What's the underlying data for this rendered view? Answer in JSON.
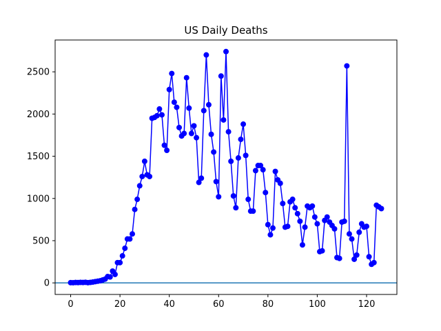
{
  "chart_data": {
    "type": "line",
    "title": "US Daily Deaths",
    "xlabel": "",
    "ylabel": "",
    "xlim": [
      -6.3,
      132.3
    ],
    "ylim": [
      -137,
      2877
    ],
    "xticks": [
      0,
      20,
      40,
      60,
      80,
      100,
      120
    ],
    "yticks": [
      0,
      500,
      1000,
      1500,
      2000,
      2500
    ],
    "grid": false,
    "legend": "none",
    "reference_line": {
      "y": 0,
      "color": "#1f77b4"
    },
    "series": [
      {
        "color": "#0000ff",
        "marker": "circle",
        "x": [
          0,
          1,
          2,
          3,
          4,
          5,
          6,
          7,
          8,
          9,
          10,
          11,
          12,
          13,
          14,
          15,
          16,
          17,
          18,
          19,
          20,
          21,
          22,
          23,
          24,
          25,
          26,
          27,
          28,
          29,
          30,
          31,
          32,
          33,
          34,
          35,
          36,
          37,
          38,
          39,
          40,
          41,
          42,
          43,
          44,
          45,
          46,
          47,
          48,
          49,
          50,
          51,
          52,
          53,
          54,
          55,
          56,
          57,
          58,
          59,
          60,
          61,
          62,
          63,
          64,
          65,
          66,
          67,
          68,
          69,
          70,
          71,
          72,
          73,
          74,
          75,
          76,
          77,
          78,
          79,
          80,
          81,
          82,
          83,
          84,
          85,
          86,
          87,
          88,
          89,
          90,
          91,
          92,
          93,
          94,
          95,
          96,
          97,
          98,
          99,
          100,
          101,
          102,
          103,
          104,
          105,
          106,
          107,
          108,
          109,
          110,
          111,
          112,
          113,
          114,
          115,
          116,
          117,
          118,
          119,
          120,
          121,
          122,
          123,
          124,
          125,
          126
        ],
        "y": [
          3,
          2,
          5,
          4,
          6,
          5,
          7,
          3,
          6,
          10,
          15,
          20,
          25,
          35,
          45,
          75,
          70,
          140,
          100,
          240,
          240,
          320,
          410,
          520,
          520,
          580,
          870,
          990,
          1150,
          1260,
          1440,
          1280,
          1260,
          1950,
          1960,
          1980,
          2060,
          1990,
          1630,
          1570,
          2290,
          2480,
          2140,
          2080,
          1840,
          1740,
          1770,
          2430,
          2070,
          1770,
          1860,
          1720,
          1190,
          1240,
          2040,
          2700,
          2110,
          1760,
          1550,
          1200,
          1020,
          2450,
          1930,
          2740,
          1790,
          1440,
          1030,
          890,
          1480,
          1700,
          1880,
          1510,
          990,
          850,
          850,
          1330,
          1390,
          1390,
          1340,
          1070,
          690,
          570,
          650,
          1320,
          1220,
          1180,
          940,
          660,
          670,
          960,
          990,
          890,
          820,
          730,
          450,
          660,
          910,
          890,
          910,
          780,
          700,
          370,
          380,
          740,
          780,
          720,
          680,
          640,
          300,
          290,
          720,
          730,
          2570,
          580,
          520,
          280,
          330,
          600,
          700,
          660,
          670,
          310,
          220,
          240,
          920,
          900,
          880
        ]
      }
    ]
  }
}
